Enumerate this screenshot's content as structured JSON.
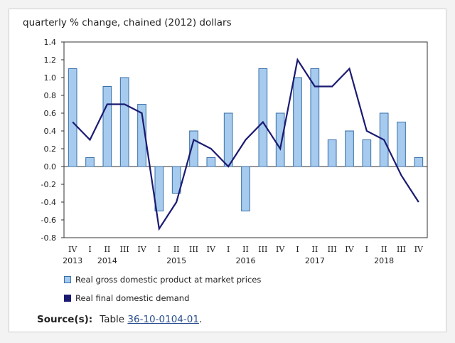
{
  "chart_data": {
    "type": "bar",
    "title": "quarterly % change, chained (2012) dollars",
    "quarters": [
      "IV",
      "I",
      "II",
      "III",
      "IV",
      "I",
      "II",
      "III",
      "IV",
      "I",
      "II",
      "III",
      "IV",
      "I",
      "II",
      "III",
      "IV",
      "I",
      "II",
      "III",
      "IV"
    ],
    "year_labels": [
      {
        "label": "2013",
        "index": 0
      },
      {
        "label": "2014",
        "index": 2
      },
      {
        "label": "2015",
        "index": 6
      },
      {
        "label": "2016",
        "index": 10
      },
      {
        "label": "2017",
        "index": 14
      },
      {
        "label": "2018",
        "index": 18
      }
    ],
    "series": [
      {
        "name": "Real gross domestic product at market prices",
        "kind": "bar",
        "color": "#a6cbee",
        "values": [
          1.1,
          0.1,
          0.9,
          1.0,
          0.7,
          -0.5,
          -0.3,
          0.4,
          0.1,
          0.6,
          -0.5,
          1.1,
          0.6,
          1.0,
          1.1,
          0.3,
          0.4,
          0.3,
          0.6,
          0.5,
          0.1
        ]
      },
      {
        "name": "Real final domestic demand",
        "kind": "line",
        "color": "#1b1b72",
        "values": [
          0.5,
          0.3,
          0.7,
          0.7,
          0.6,
          -0.7,
          -0.4,
          0.3,
          0.2,
          0.0,
          0.3,
          0.5,
          0.2,
          1.2,
          0.9,
          0.9,
          1.1,
          0.4,
          0.3,
          -0.1,
          -0.4
        ]
      }
    ],
    "ylim": [
      -0.8,
      1.4
    ],
    "yticks": [
      "1.4",
      "1.2",
      "1.0",
      "0.8",
      "0.6",
      "0.4",
      "0.2",
      "0.0",
      "-0.2",
      "-0.4",
      "-0.6",
      "-0.8"
    ],
    "grid": false,
    "legend_position": "bottom-left"
  },
  "legend": {
    "bar_label": "Real gross domestic product at market prices",
    "line_label": "Real final domestic demand"
  },
  "source": {
    "label": "Source(s):",
    "prefix": "Table",
    "link_text": "36-10-0104-01",
    "suffix": "."
  }
}
